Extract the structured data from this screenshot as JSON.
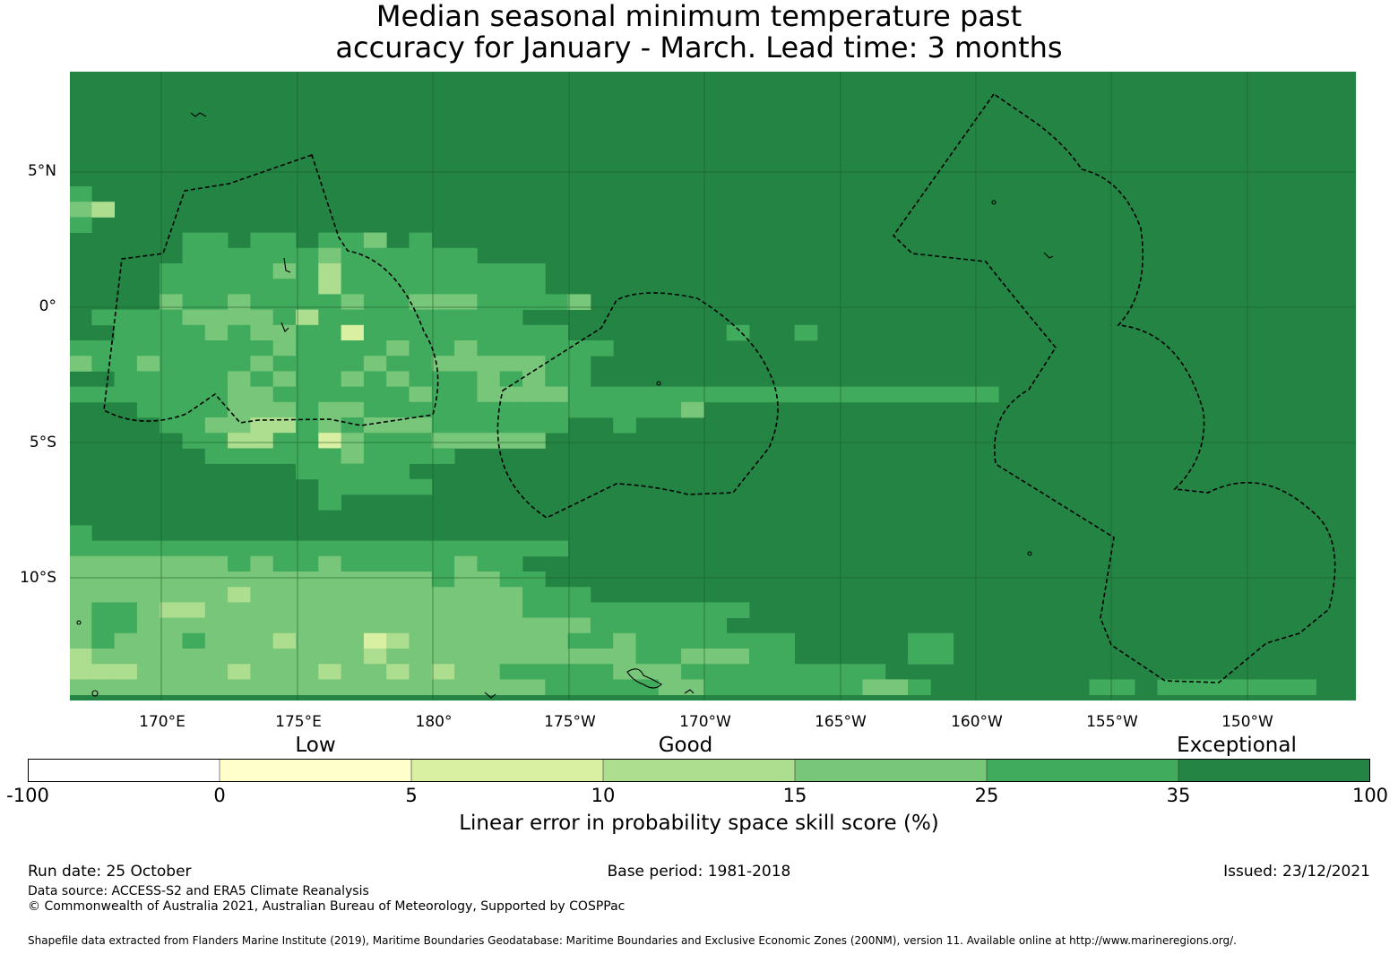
{
  "title": {
    "line1": "Median seasonal minimum temperature past",
    "line2": "accuracy for January - March. Lead time: 3 months"
  },
  "map": {
    "lon_range": [
      166.6,
      213.5
    ],
    "lat_range": [
      -14.6,
      8.7
    ],
    "background_color": "#238443",
    "lat_ticks": [
      "5°N",
      "0°",
      "5°S",
      "10°S"
    ],
    "lon_ticks": [
      "170°E",
      "175°E",
      "180°",
      "175°W",
      "170°W",
      "165°W",
      "160°W",
      "155°W",
      "150°W"
    ]
  },
  "legend": {
    "categories": [
      "Low",
      "Good",
      "Exceptional"
    ],
    "bins": [
      {
        "from": -100,
        "to": 0,
        "color": "#ffffff"
      },
      {
        "from": 0,
        "to": 5,
        "color": "#ffffcc"
      },
      {
        "from": 5,
        "to": 10,
        "color": "#d9f0a3"
      },
      {
        "from": 10,
        "to": 15,
        "color": "#addd8e"
      },
      {
        "from": 15,
        "to": 25,
        "color": "#78c679"
      },
      {
        "from": 25,
        "to": 35,
        "color": "#41ab5d"
      },
      {
        "from": 35,
        "to": 100,
        "color": "#238443"
      }
    ],
    "tick_labels": [
      "-100",
      "0",
      "5",
      "10",
      "15",
      "25",
      "35",
      "100"
    ],
    "label": "Linear error in probability space skill score (%)"
  },
  "footer": {
    "run_date": "Run date: 25 October",
    "base_period": "Base period: 1981-2018",
    "issued": "Issued: 23/12/2021",
    "data_source": "Data source: ACCESS-S2 and ERA5 Climate Reanalysis",
    "copyright": "© Commonwealth of Australia 2021, Australian Bureau of Meteorology, Supported by COSPPac",
    "shapefile": "Shapefile data extracted from Flanders Marine Institute (2019), Maritime Boundaries Geodatabase: Maritime Boundaries and Exclusive Economic Zones (200NM), version 11. Available online at http://www.marineregions.org/."
  }
}
